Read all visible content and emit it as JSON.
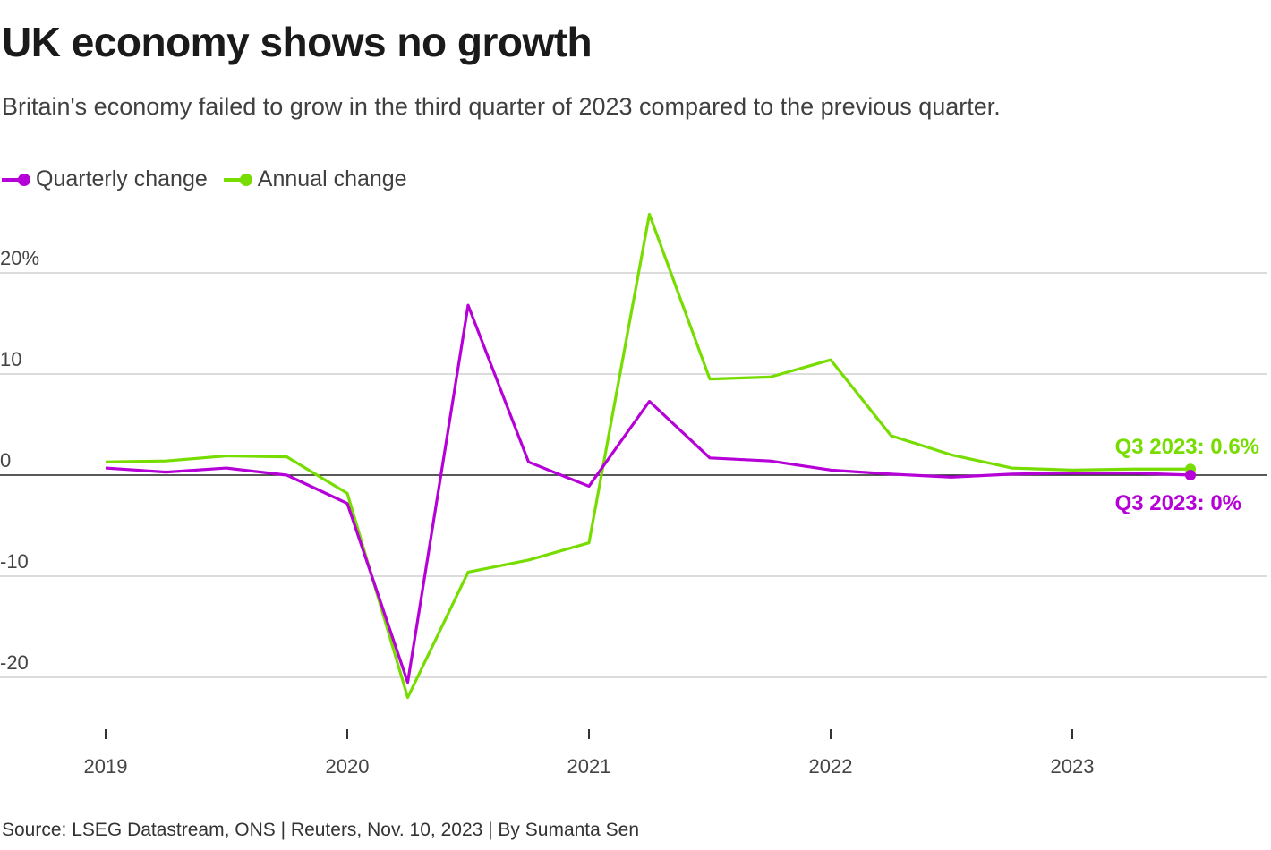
{
  "title": "UK economy shows no growth",
  "subtitle": "Britain's economy failed to grow in the third quarter of 2023 compared to the previous quarter.",
  "source": "Source: LSEG Datastream, ONS | Reuters, Nov. 10, 2023 | By Sumanta Sen",
  "chart_data": {
    "type": "line",
    "x": [
      "2019 Q1",
      "2019 Q2",
      "2019 Q3",
      "2019 Q4",
      "2020 Q1",
      "2020 Q2",
      "2020 Q3",
      "2020 Q4",
      "2021 Q1",
      "2021 Q2",
      "2021 Q3",
      "2021 Q4",
      "2022 Q1",
      "2022 Q2",
      "2022 Q3",
      "2022 Q4",
      "2023 Q1",
      "2023 Q2",
      "2023 Q3"
    ],
    "series": [
      {
        "name": "Quarterly change",
        "color": "#b600d8",
        "values": [
          0.7,
          0.3,
          0.7,
          0.0,
          -2.8,
          -20.5,
          16.8,
          1.3,
          -1.1,
          7.3,
          1.7,
          1.4,
          0.5,
          0.1,
          -0.2,
          0.1,
          0.2,
          0.2,
          0.0
        ],
        "end_label": "Q3 2023: 0%"
      },
      {
        "name": "Annual change",
        "color": "#77dd00",
        "values": [
          1.3,
          1.4,
          1.9,
          1.8,
          -1.8,
          -22.0,
          -9.6,
          -8.4,
          -6.7,
          25.8,
          9.5,
          9.7,
          11.4,
          3.9,
          2.0,
          0.7,
          0.5,
          0.6,
          0.6
        ],
        "end_label": "Q3 2023: 0.6%"
      }
    ],
    "y_ticks": [
      "20%",
      "10",
      "0",
      "-10",
      "-20"
    ],
    "y_tick_values": [
      20,
      10,
      0,
      -10,
      -20
    ],
    "x_ticks": [
      "2019",
      "2020",
      "2021",
      "2022",
      "2023"
    ],
    "ylim": [
      -25,
      27
    ],
    "grid": true,
    "legend": "top-left"
  }
}
